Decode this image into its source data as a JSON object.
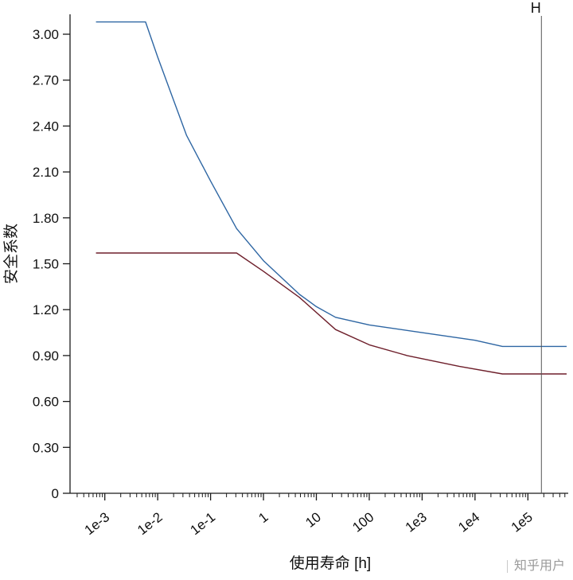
{
  "watermark": {
    "text": "知乎用户"
  },
  "chart_data": {
    "type": "line",
    "title": "",
    "xlabel": "使用寿命 [h]",
    "ylabel": "安全系数",
    "x_scale": "log",
    "xlim": [
      0.00022,
      540000
    ],
    "ylim": [
      0,
      3.13
    ],
    "grid": false,
    "legend": "none",
    "x_ticks": {
      "values": [
        0.001,
        0.01,
        0.1,
        1,
        10,
        100,
        1000,
        10000,
        100000
      ],
      "labels": [
        "1e-3",
        "1e-2",
        "1e-1",
        "1",
        "10",
        "100",
        "1e3",
        "1e4",
        "1e5"
      ]
    },
    "y_ticks": {
      "values": [
        0,
        0.3,
        0.6,
        0.9,
        1.2,
        1.5,
        1.8,
        2.1,
        2.4,
        2.7,
        3.0
      ],
      "labels": [
        "0",
        "0.30",
        "0.60",
        "0.90",
        "1.20",
        "1.50",
        "1.80",
        "2.10",
        "2.40",
        "2.70",
        "3.00"
      ]
    },
    "marker": {
      "label": "H",
      "x": 180000,
      "color": "#555555"
    },
    "series": [
      {
        "name": "blue-curve",
        "color": "#2e66a3",
        "points": [
          [
            0.00068,
            3.08
          ],
          [
            0.0059,
            3.08
          ],
          [
            0.01,
            2.85
          ],
          [
            0.035,
            2.34
          ],
          [
            0.1,
            2.04
          ],
          [
            0.31,
            1.73
          ],
          [
            1,
            1.52
          ],
          [
            4.8,
            1.3
          ],
          [
            10,
            1.22
          ],
          [
            23,
            1.15
          ],
          [
            100,
            1.1
          ],
          [
            1000,
            1.05
          ],
          [
            10000,
            1.0
          ],
          [
            33000,
            0.96
          ],
          [
            540000,
            0.96
          ]
        ]
      },
      {
        "name": "dark-red-curve",
        "color": "#6e1f2b",
        "points": [
          [
            0.00068,
            1.57
          ],
          [
            0.31,
            1.57
          ],
          [
            1,
            1.45
          ],
          [
            4.8,
            1.28
          ],
          [
            23,
            1.07
          ],
          [
            100,
            0.97
          ],
          [
            520,
            0.9
          ],
          [
            5000,
            0.83
          ],
          [
            33000,
            0.78
          ],
          [
            540000,
            0.78
          ]
        ]
      }
    ],
    "axis_color": "#1a1a1a"
  }
}
